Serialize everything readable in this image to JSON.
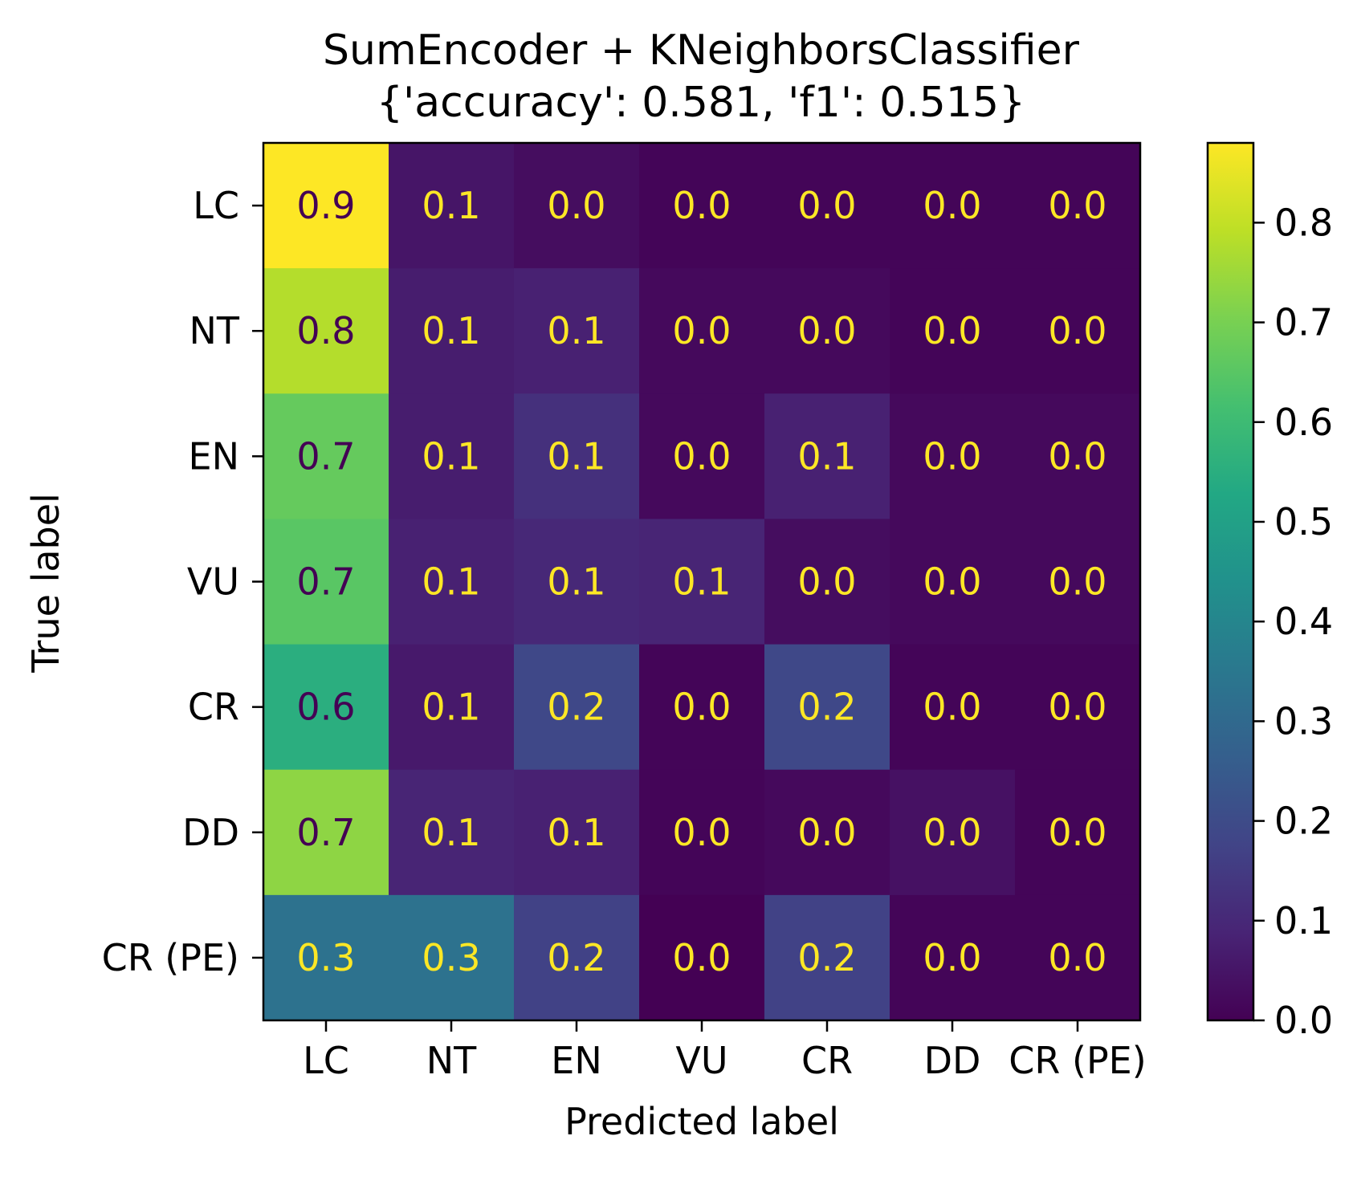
{
  "chart_data": {
    "type": "heatmap",
    "title": "SumEncoder + KNeighborsClassifier",
    "subtitle": "{'accuracy': 0.581, 'f1': 0.515}",
    "xlabel": "Predicted label",
    "ylabel": "True label",
    "x_categories": [
      "LC",
      "NT",
      "EN",
      "VU",
      "CR",
      "DD",
      "CR (PE)"
    ],
    "y_categories": [
      "LC",
      "NT",
      "EN",
      "VU",
      "CR",
      "DD",
      "CR (PE)"
    ],
    "values": [
      [
        0.88,
        0.05,
        0.03,
        0.01,
        0.01,
        0.01,
        0.01
      ],
      [
        0.78,
        0.07,
        0.08,
        0.02,
        0.02,
        0.01,
        0.01
      ],
      [
        0.67,
        0.07,
        0.12,
        0.02,
        0.08,
        0.02,
        0.02
      ],
      [
        0.65,
        0.08,
        0.1,
        0.09,
        0.03,
        0.02,
        0.02
      ],
      [
        0.55,
        0.06,
        0.19,
        0.01,
        0.19,
        0.01,
        0.01
      ],
      [
        0.73,
        0.09,
        0.08,
        0.01,
        0.02,
        0.04,
        0.01
      ],
      [
        0.33,
        0.33,
        0.17,
        0.0,
        0.17,
        0.01,
        0.01
      ]
    ],
    "cell_labels": [
      [
        "0.9",
        "0.1",
        "0.0",
        "0.0",
        "0.0",
        "0.0",
        "0.0"
      ],
      [
        "0.8",
        "0.1",
        "0.1",
        "0.0",
        "0.0",
        "0.0",
        "0.0"
      ],
      [
        "0.7",
        "0.1",
        "0.1",
        "0.0",
        "0.1",
        "0.0",
        "0.0"
      ],
      [
        "0.7",
        "0.1",
        "0.1",
        "0.1",
        "0.0",
        "0.0",
        "0.0"
      ],
      [
        "0.6",
        "0.1",
        "0.2",
        "0.0",
        "0.2",
        "0.0",
        "0.0"
      ],
      [
        "0.7",
        "0.1",
        "0.1",
        "0.0",
        "0.0",
        "0.0",
        "0.0"
      ],
      [
        "0.3",
        "0.3",
        "0.2",
        "0.0",
        "0.2",
        "0.0",
        "0.0"
      ]
    ],
    "colormap": "viridis",
    "colorbar": {
      "range": [
        0.0,
        0.88
      ],
      "ticks": [
        0.0,
        0.1,
        0.2,
        0.3,
        0.4,
        0.5,
        0.6,
        0.7,
        0.8
      ],
      "tick_labels": [
        "0.0",
        "0.1",
        "0.2",
        "0.3",
        "0.4",
        "0.5",
        "0.6",
        "0.7",
        "0.8"
      ]
    },
    "label_colors": {
      "on_dark": "#fde725",
      "on_light": "#440154"
    }
  }
}
